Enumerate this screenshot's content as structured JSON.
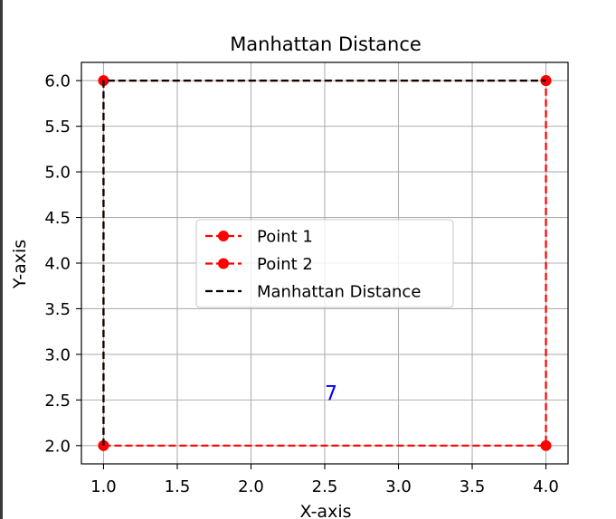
{
  "chart_data": {
    "type": "line",
    "title": "Manhattan Distance",
    "xlabel": "X-axis",
    "ylabel": "Y-axis",
    "xlim": [
      0.85,
      4.15
    ],
    "ylim": [
      1.8,
      6.2
    ],
    "xticks": [
      1.0,
      1.5,
      2.0,
      2.5,
      3.0,
      3.5,
      4.0
    ],
    "yticks": [
      2.0,
      2.5,
      3.0,
      3.5,
      4.0,
      4.5,
      5.0,
      5.5,
      6.0
    ],
    "xtick_labels": [
      "1.0",
      "1.5",
      "2.0",
      "2.5",
      "3.0",
      "3.5",
      "4.0"
    ],
    "ytick_labels": [
      "2.0",
      "2.5",
      "3.0",
      "3.5",
      "4.0",
      "4.5",
      "5.0",
      "5.5",
      "6.0"
    ],
    "grid": true,
    "legend_position": "center-left",
    "series": [
      {
        "name": "Point 1",
        "x": [
          1,
          4,
          4
        ],
        "y": [
          2,
          2,
          6
        ],
        "color": "#ff0000",
        "line_style": "dashed",
        "marker": "circle"
      },
      {
        "name": "Point 2",
        "x": [
          1,
          1,
          4
        ],
        "y": [
          2,
          6,
          6
        ],
        "color": "#ff0000",
        "line_style": "dashed",
        "marker": "circle"
      },
      {
        "name": "Manhattan Distance",
        "x": [
          1,
          1,
          4
        ],
        "y": [
          2,
          6,
          6
        ],
        "color": "#000000",
        "line_style": "dashed",
        "marker": "none"
      }
    ],
    "annotations": [
      {
        "text": "7",
        "x": 2.5,
        "y": 2.5,
        "color": "#0000ff"
      }
    ]
  }
}
